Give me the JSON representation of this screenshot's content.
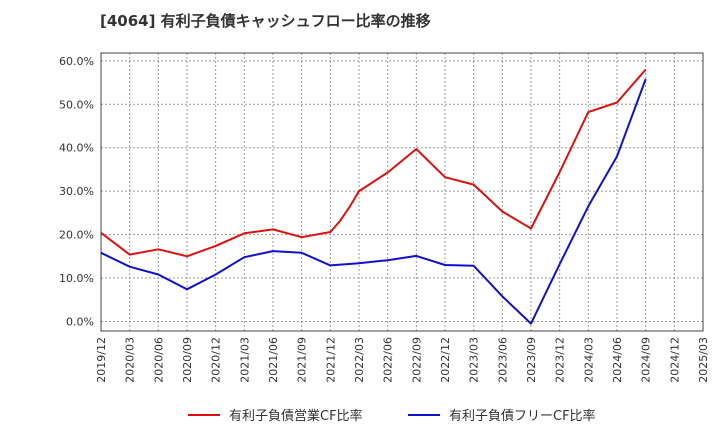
{
  "chart_data": {
    "type": "line",
    "title": "[4064]  有利子負債キャッシュフロー比率の推移",
    "xlabel": "",
    "ylabel": "",
    "ylim": [
      0,
      60
    ],
    "y_ticks": [
      "0.0%",
      "10.0%",
      "20.0%",
      "30.0%",
      "40.0%",
      "50.0%",
      "60.0%"
    ],
    "y_tick_values": [
      0,
      10,
      20,
      30,
      40,
      50,
      60
    ],
    "x_ticks": [
      "2019/12",
      "2020/03",
      "2020/06",
      "2020/09",
      "2020/12",
      "2021/03",
      "2021/06",
      "2021/09",
      "2021/12",
      "2022/03",
      "2022/06",
      "2022/09",
      "2022/12",
      "2023/03",
      "2023/06",
      "2023/09",
      "2023/12",
      "2024/03",
      "2024/06",
      "2024/09",
      "2024/12",
      "2025/03"
    ],
    "grid": true,
    "legend_position": "bottom",
    "series": [
      {
        "name": "有利子負債営業CF比率",
        "color": "#dd1111",
        "x": [
          "2019/12",
          "2020/03",
          "2020/06",
          "2020/09",
          "2020/12",
          "2021/03",
          "2021/06",
          "2021/09",
          "2021/12",
          "2022/01",
          "2022/02",
          "2022/03",
          "2022/06",
          "2022/09",
          "2022/12",
          "2023/03",
          "2023/06",
          "2023/09",
          "2023/12",
          "2024/03",
          "2024/06",
          "2024/09"
        ],
        "values": [
          20.4,
          15.4,
          16.6,
          15.0,
          17.4,
          20.3,
          21.2,
          19.4,
          20.6,
          23.1,
          26.3,
          30.0,
          34.3,
          39.7,
          33.2,
          31.5,
          25.3,
          21.4,
          34.4,
          48.2,
          50.4,
          58.0
        ]
      },
      {
        "name": "有利子負債フリーCF比率",
        "color": "#1111cc",
        "x": [
          "2019/12",
          "2020/03",
          "2020/06",
          "2020/09",
          "2020/12",
          "2021/03",
          "2021/06",
          "2021/09",
          "2021/12",
          "2022/03",
          "2022/06",
          "2022/09",
          "2022/12",
          "2023/03",
          "2023/06",
          "2023/09",
          "2023/12",
          "2024/03",
          "2024/06",
          "2024/09"
        ],
        "values": [
          15.8,
          12.6,
          10.8,
          7.4,
          10.8,
          14.8,
          16.2,
          15.8,
          12.9,
          13.4,
          14.1,
          15.1,
          13.0,
          12.8,
          5.8,
          -0.5,
          13.2,
          26.5,
          38.0,
          55.8
        ]
      }
    ]
  }
}
